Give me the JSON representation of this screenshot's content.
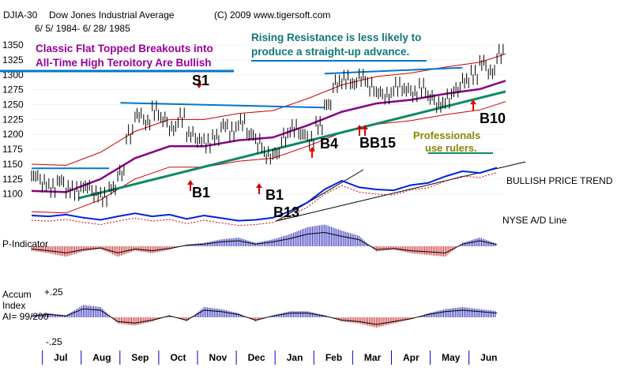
{
  "header": {
    "symbol": "DJIA-30",
    "name": "Dow Jones Industrial Average",
    "copyright": "(C) 2009 www.tigersoft.com",
    "date_range": "6/ 5/ 1984- 6/ 28/ 1985"
  },
  "annotations": {
    "classic_line1": "Classic Flat Topped Breakouts into",
    "classic_line2": "All-Time High Teroitory Are Bullish",
    "rising_line1": "Rising Resistance is less likely to",
    "rising_line2": "produce a straight-up advance.",
    "pros_line1": "Professionals",
    "pros_line2": "use rulers."
  },
  "signals": {
    "s1": "S1",
    "b1a": "B1",
    "b1b": "B1",
    "b13": "B13",
    "b4": "B4",
    "b18": "BB15",
    "b10": "B10"
  },
  "panels": {
    "trend_label": "BULLISH PRICE TREND",
    "ad_label": "NYSE A/D Line",
    "p_indicator": "P-Indicator",
    "accum_line1": "Accum",
    "accum_line2": "Index",
    "accum_ai": "AI= 99/200",
    "accum_top": "+.25",
    "accum_bottom": "-.25"
  },
  "colors": {
    "price_bar": "#000000",
    "ma_line": "#880088",
    "band": "#cc0000",
    "resistance": "#0077cc",
    "uptrend": "#118866",
    "ad_line": "#0022dd",
    "positive_hist": "#2222bb",
    "negative_hist": "#cc2222",
    "classic_text": "#990099",
    "rising_text": "#117777",
    "pros_text": "#888800"
  },
  "chart_data": {
    "type": "line",
    "yticks": [
      1100,
      1125,
      1150,
      1175,
      1200,
      1225,
      1250,
      1275,
      1300,
      1325,
      1350
    ],
    "ylim": [
      1085,
      1362
    ],
    "xlim": [
      0,
      55
    ],
    "months": [
      "Jul",
      "Aug",
      "Sep",
      "Oct",
      "Nov",
      "Dec",
      "Jan",
      "Feb",
      "Mar",
      "Apr",
      "May",
      "Jun"
    ],
    "month_x": [
      3.5,
      8,
      12.5,
      17,
      21.5,
      26,
      30.5,
      35,
      39.5,
      44,
      48.5,
      53
    ],
    "series": [
      {
        "x": [
          0,
          1,
          2,
          3,
          4,
          5,
          6,
          7,
          8,
          9,
          10,
          11,
          12,
          13,
          14,
          15,
          16,
          17,
          18,
          19,
          20,
          21,
          22,
          23,
          24,
          25,
          26,
          27,
          28,
          29,
          30,
          31,
          32,
          33,
          34,
          35,
          36,
          37,
          38,
          39,
          40,
          41,
          42,
          43,
          44,
          45,
          46,
          47,
          48,
          49,
          50,
          51,
          52,
          53,
          54
        ],
        "y": [
          1130,
          1118,
          1110,
          1122,
          1108,
          1105,
          1112,
          1100,
          1095,
          1110,
          1135,
          1200,
          1232,
          1220,
          1240,
          1225,
          1210,
          1228,
          1200,
          1190,
          1185,
          1195,
          1215,
          1205,
          1220,
          1200,
          1185,
          1165,
          1168,
          1195,
          1210,
          1200,
          1190,
          1215,
          1250,
          1285,
          1292,
          1285,
          1295,
          1280,
          1270,
          1265,
          1280,
          1275,
          1268,
          1278,
          1262,
          1250,
          1260,
          1275,
          1290,
          1300,
          1320,
          1305,
          1335
        ]
      },
      {
        "x": [
          0,
          4,
          8,
          12,
          16,
          20,
          24,
          28,
          32,
          36,
          40,
          44,
          48,
          52,
          55
        ],
        "y": [
          1105,
          1103,
          1125,
          1160,
          1180,
          1180,
          1190,
          1195,
          1215,
          1238,
          1252,
          1258,
          1268,
          1276,
          1290
        ]
      }
    ],
    "ad_line": {
      "x": [
        0,
        2,
        4,
        6,
        8,
        10,
        12,
        14,
        16,
        18,
        20,
        22,
        24,
        26,
        28,
        30,
        32,
        34,
        36,
        38,
        40,
        42,
        44,
        46,
        48,
        50,
        52,
        54
      ],
      "y": [
        -20,
        -22,
        -18,
        -25,
        -30,
        -22,
        -15,
        -22,
        -18,
        -28,
        -20,
        -26,
        -32,
        -30,
        -25,
        -10,
        10,
        40,
        60,
        45,
        40,
        38,
        50,
        55,
        70,
        82,
        78,
        90
      ]
    },
    "p_indicator": {
      "x": [
        0,
        2,
        4,
        6,
        8,
        10,
        12,
        14,
        16,
        18,
        20,
        22,
        24,
        26,
        28,
        30,
        32,
        34,
        36,
        38,
        40,
        42,
        44,
        46,
        48,
        50,
        52,
        54
      ],
      "y": [
        -5,
        -8,
        -12,
        -6,
        -3,
        -12,
        -5,
        -8,
        -4,
        2,
        4,
        8,
        10,
        4,
        8,
        14,
        22,
        25,
        18,
        12,
        -6,
        -4,
        -8,
        -10,
        -12,
        4,
        10,
        3
      ]
    },
    "accum_index": {
      "x": [
        0,
        2,
        4,
        6,
        8,
        10,
        12,
        14,
        16,
        18,
        20,
        22,
        24,
        26,
        28,
        30,
        32,
        34,
        36,
        38,
        40,
        42,
        44,
        46,
        48,
        50,
        52,
        54
      ],
      "y": [
        0.02,
        0.04,
        0.02,
        0.12,
        0.1,
        -0.06,
        -0.08,
        -0.04,
        0.02,
        -0.04,
        0.1,
        0.08,
        0.04,
        -0.04,
        0.02,
        0.06,
        0.06,
        0.02,
        -0.04,
        -0.06,
        -0.1,
        -0.06,
        -0.02,
        0.04,
        0.08,
        0.1,
        0.08,
        0.06
      ]
    },
    "resistance_level_1": 1253,
    "resistance_level_2": 1302,
    "prior_high": 1143
  }
}
